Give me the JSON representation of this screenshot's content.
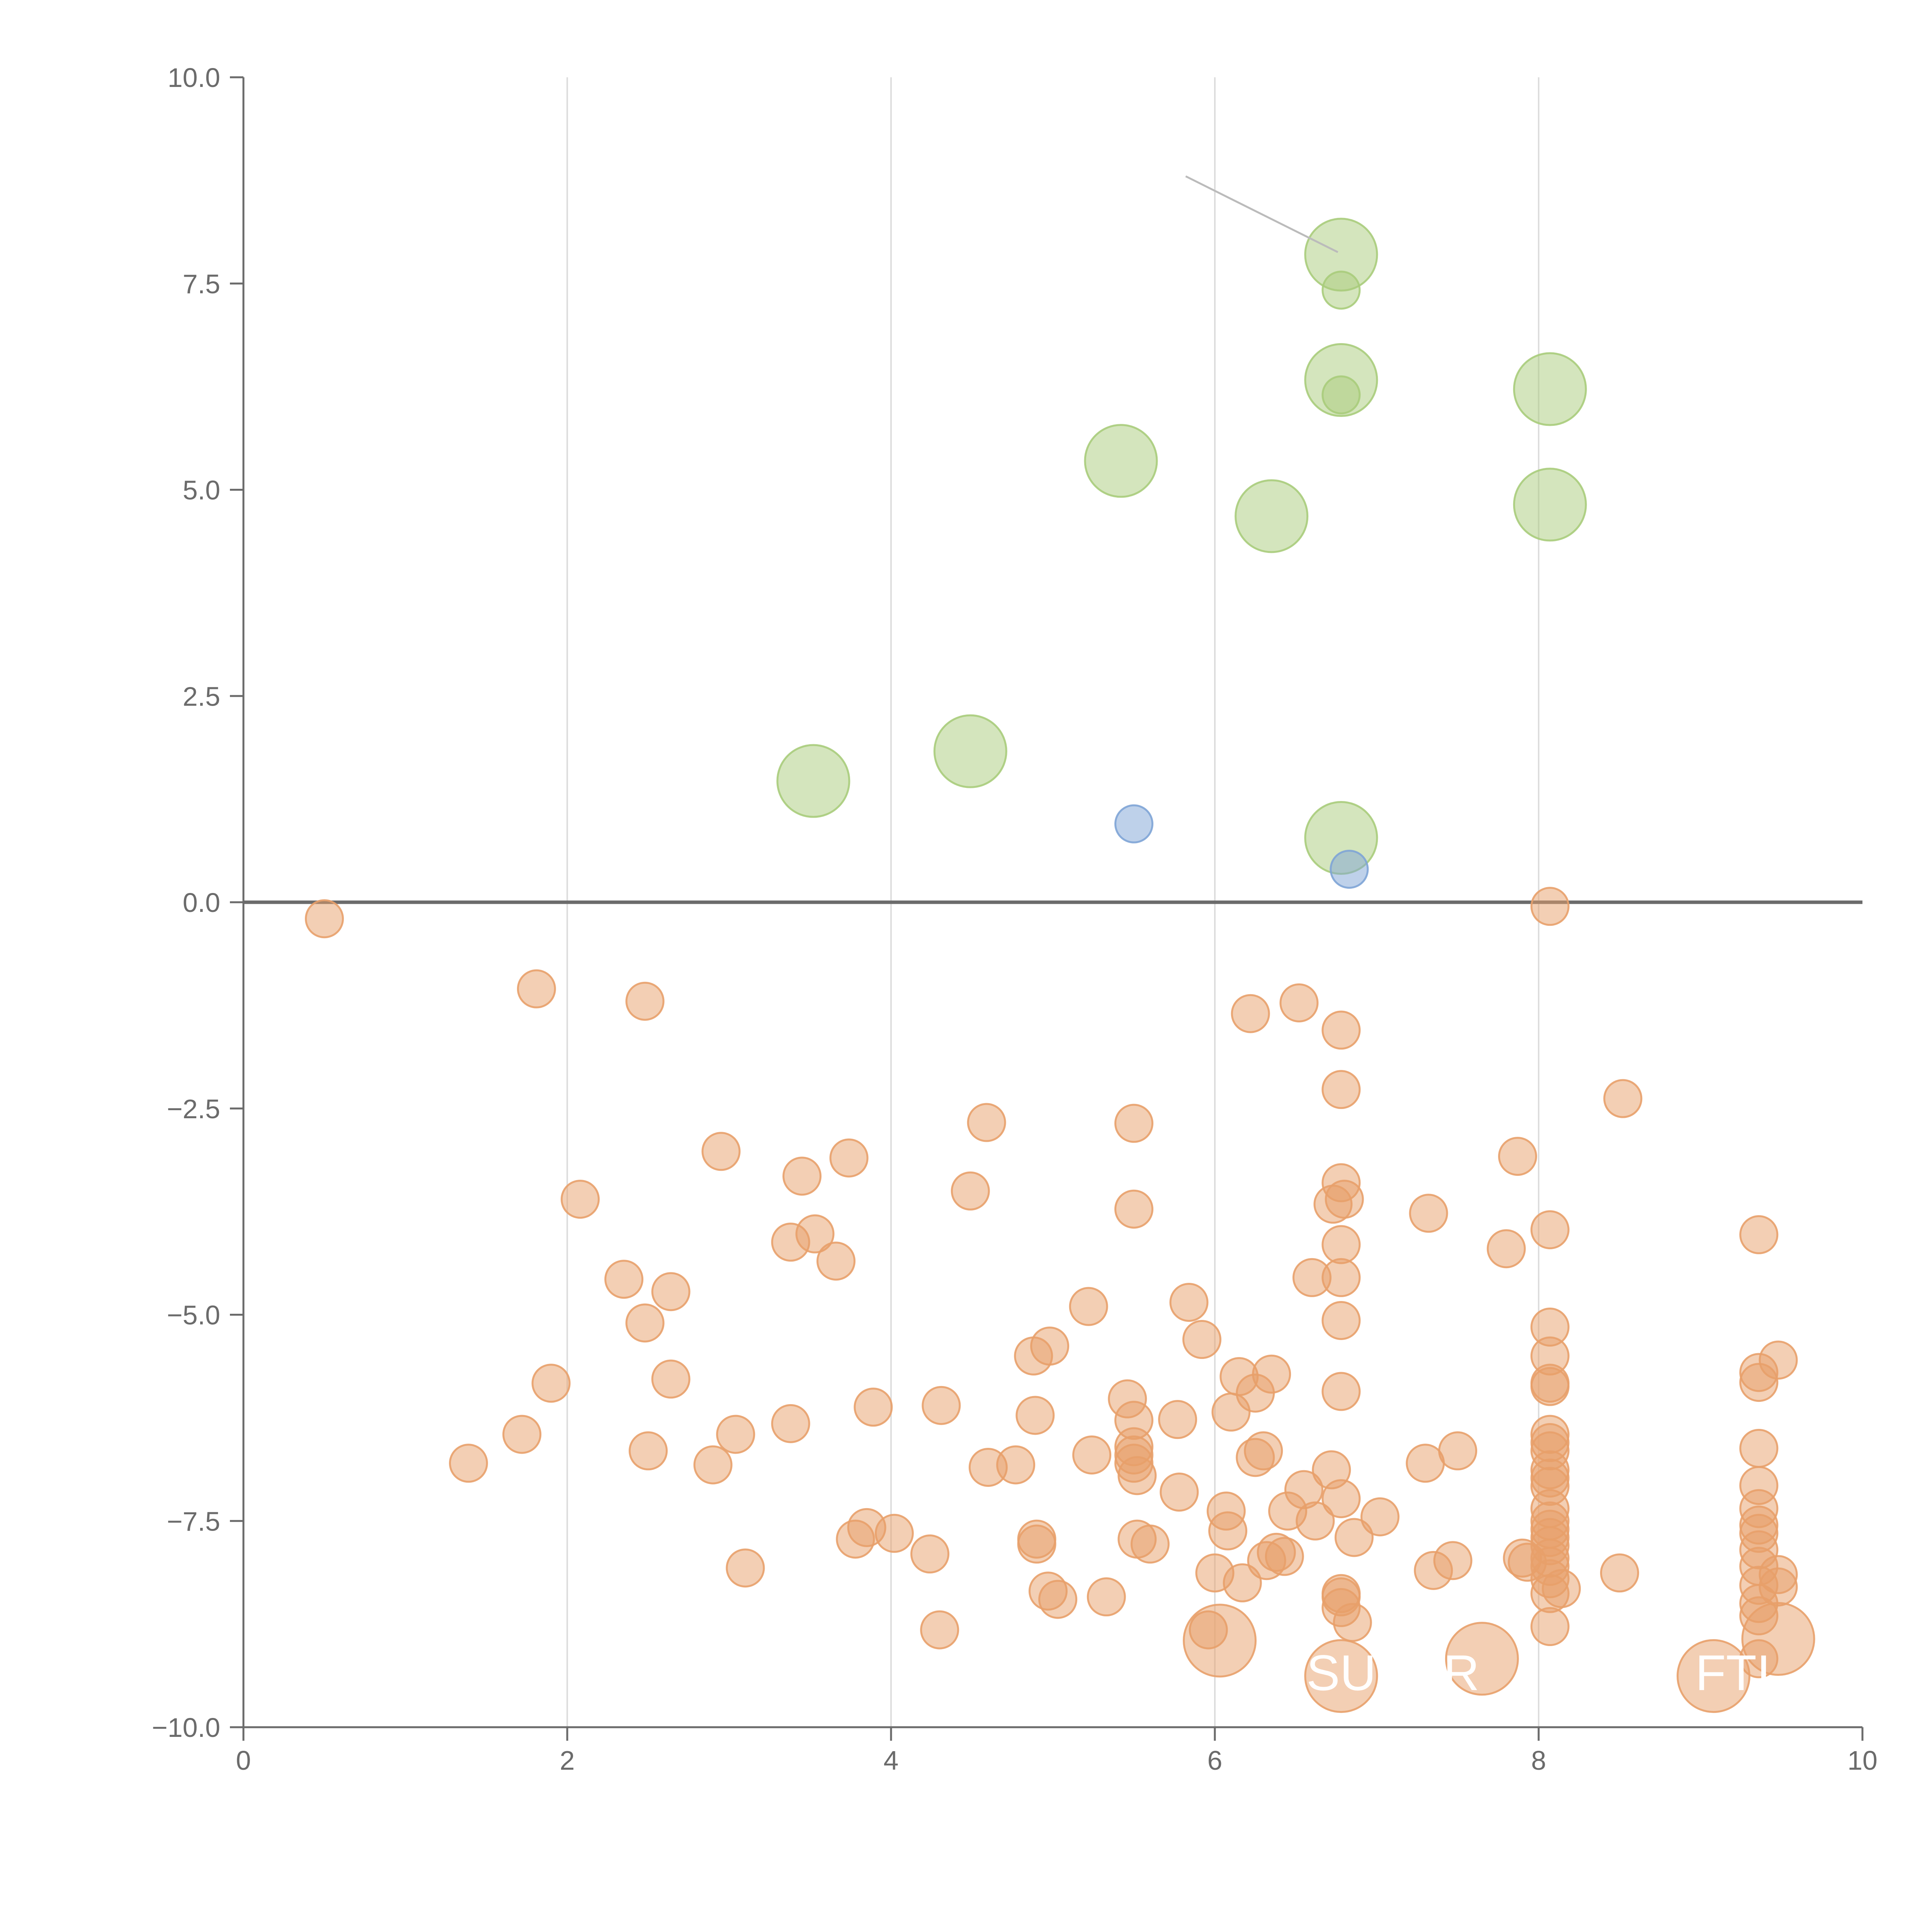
{
  "chart_data": {
    "type": "scatter",
    "title": "",
    "xlabel": "",
    "ylabel": "",
    "xlim": [
      0,
      10
    ],
    "ylim": [
      -10,
      10
    ],
    "x_ticks": [
      0,
      2,
      4,
      6,
      8,
      10
    ],
    "x_tick_labels": [
      "0",
      "2",
      "4",
      "6",
      "8",
      "10"
    ],
    "y_ticks": [
      10,
      7.5,
      5,
      2.5,
      0,
      -2.5,
      -5,
      -7.5,
      -10
    ],
    "y_tick_labels": [
      "10.0",
      "7.5",
      "5.0",
      "2.5",
      "0.0",
      "−2.5",
      "−5.0",
      "−7.5",
      "−10.0"
    ],
    "vertical_grid": true,
    "horizontal_grid": false,
    "zero_line": true,
    "legend": "none",
    "colors": {
      "green": "#a9cc7b",
      "blue": "#7ea4d6",
      "orange": "#e8a06a",
      "axis": "#6b6b6b",
      "grid": "#dddddd",
      "leader_line": "#bbbbbb"
    },
    "series": [
      {
        "color_key": "green",
        "points": [
          [
            6.78,
            7.85,
            3
          ],
          [
            6.78,
            7.42,
            1
          ],
          [
            6.78,
            6.33,
            3
          ],
          [
            6.78,
            6.15,
            1
          ],
          [
            8.07,
            6.22,
            3
          ],
          [
            5.42,
            5.35,
            3
          ],
          [
            6.35,
            4.68,
            3
          ],
          [
            8.07,
            4.82,
            3
          ],
          [
            3.52,
            1.47,
            3
          ],
          [
            4.49,
            1.83,
            3
          ],
          [
            6.78,
            0.78,
            3
          ]
        ]
      },
      {
        "color_key": "blue",
        "points": [
          [
            5.5,
            0.95,
            1
          ],
          [
            6.83,
            0.4,
            1
          ]
        ]
      },
      {
        "color_key": "orange",
        "points": [
          [
            0.5,
            -0.2,
            1
          ],
          [
            1.81,
            -1.05,
            1
          ],
          [
            2.48,
            -1.2,
            1
          ],
          [
            6.22,
            -1.35,
            1
          ],
          [
            6.52,
            -1.22,
            1
          ],
          [
            6.78,
            -1.55,
            1
          ],
          [
            6.78,
            -2.27,
            1
          ],
          [
            8.07,
            -0.05,
            1
          ],
          [
            8.52,
            -2.38,
            1
          ],
          [
            4.59,
            -2.67,
            1
          ],
          [
            5.5,
            -2.68,
            1
          ],
          [
            2.95,
            -3.02,
            1
          ],
          [
            3.74,
            -3.1,
            1
          ],
          [
            3.45,
            -3.32,
            1
          ],
          [
            2.08,
            -3.6,
            1
          ],
          [
            4.49,
            -3.5,
            1
          ],
          [
            5.5,
            -3.72,
            1
          ],
          [
            6.78,
            -3.4,
            1
          ],
          [
            6.73,
            -3.66,
            1
          ],
          [
            6.8,
            -3.6,
            1
          ],
          [
            6.78,
            -4.15,
            1
          ],
          [
            7.87,
            -3.08,
            1
          ],
          [
            7.32,
            -3.77,
            1
          ],
          [
            7.8,
            -4.2,
            1
          ],
          [
            8.07,
            -3.97,
            1
          ],
          [
            9.36,
            -4.03,
            1
          ],
          [
            3.38,
            -4.12,
            1
          ],
          [
            3.53,
            -4.02,
            1
          ],
          [
            3.66,
            -4.35,
            1
          ],
          [
            2.35,
            -4.57,
            1
          ],
          [
            2.64,
            -4.72,
            1
          ],
          [
            6.6,
            -4.55,
            1
          ],
          [
            6.78,
            -4.55,
            1
          ],
          [
            5.84,
            -4.85,
            1
          ],
          [
            5.22,
            -4.9,
            1
          ],
          [
            2.48,
            -5.1,
            1
          ],
          [
            5.92,
            -5.3,
            1
          ],
          [
            6.78,
            -5.07,
            1
          ],
          [
            4.98,
            -5.38,
            1
          ],
          [
            4.88,
            -5.5,
            1
          ],
          [
            8.07,
            -5.15,
            1
          ],
          [
            8.07,
            -5.5,
            1
          ],
          [
            9.48,
            -5.55,
            1
          ],
          [
            9.36,
            -5.7,
            1
          ],
          [
            9.36,
            -5.82,
            1
          ],
          [
            1.9,
            -5.83,
            1
          ],
          [
            2.64,
            -5.78,
            1
          ],
          [
            6.15,
            -5.75,
            1
          ],
          [
            6.35,
            -5.72,
            1
          ],
          [
            6.25,
            -5.95,
            1
          ],
          [
            6.78,
            -5.93,
            1
          ],
          [
            8.07,
            -5.83,
            1
          ],
          [
            8.07,
            -5.87,
            1
          ],
          [
            5.46,
            -6.02,
            1
          ],
          [
            6.1,
            -6.18,
            1
          ],
          [
            3.89,
            -6.12,
            1
          ],
          [
            4.31,
            -6.1,
            1
          ],
          [
            4.89,
            -6.22,
            1
          ],
          [
            5.5,
            -6.28,
            1
          ],
          [
            5.77,
            -6.27,
            1
          ],
          [
            3.38,
            -6.32,
            1
          ],
          [
            1.72,
            -6.45,
            1
          ],
          [
            3.04,
            -6.45,
            1
          ],
          [
            8.07,
            -6.45,
            1
          ],
          [
            8.07,
            -6.55,
            1
          ],
          [
            8.07,
            -6.65,
            1
          ],
          [
            9.36,
            -6.62,
            1
          ],
          [
            5.5,
            -6.6,
            1
          ],
          [
            5.5,
            -6.7,
            1
          ],
          [
            5.5,
            -6.8,
            1
          ],
          [
            6.3,
            -6.65,
            1
          ],
          [
            6.25,
            -6.73,
            1
          ],
          [
            7.5,
            -6.65,
            1
          ],
          [
            5.24,
            -6.7,
            1
          ],
          [
            2.5,
            -6.65,
            1
          ],
          [
            1.39,
            -6.8,
            1
          ],
          [
            2.9,
            -6.82,
            1
          ],
          [
            4.6,
            -6.85,
            1
          ],
          [
            4.77,
            -6.82,
            1
          ],
          [
            5.52,
            -6.95,
            1
          ],
          [
            6.72,
            -6.88,
            1
          ],
          [
            7.3,
            -6.8,
            1
          ],
          [
            8.07,
            -6.88,
            1
          ],
          [
            8.07,
            -6.98,
            1
          ],
          [
            8.07,
            -7.08,
            1
          ],
          [
            9.36,
            -7.07,
            1
          ],
          [
            5.78,
            -7.15,
            1
          ],
          [
            6.55,
            -7.12,
            1
          ],
          [
            6.78,
            -7.23,
            1
          ],
          [
            6.07,
            -7.38,
            1
          ],
          [
            6.45,
            -7.38,
            1
          ],
          [
            6.62,
            -7.5,
            1
          ],
          [
            7.02,
            -7.45,
            1
          ],
          [
            8.07,
            -7.35,
            1
          ],
          [
            8.07,
            -7.5,
            1
          ],
          [
            8.07,
            -7.6,
            1
          ],
          [
            8.07,
            -7.7,
            1
          ],
          [
            9.36,
            -7.35,
            1
          ],
          [
            9.36,
            -7.55,
            1
          ],
          [
            9.36,
            -7.65,
            1
          ],
          [
            3.85,
            -7.58,
            1
          ],
          [
            4.02,
            -7.65,
            1
          ],
          [
            3.78,
            -7.72,
            1
          ],
          [
            4.9,
            -7.72,
            1
          ],
          [
            4.9,
            -7.78,
            1
          ],
          [
            5.52,
            -7.72,
            1
          ],
          [
            5.6,
            -7.78,
            1
          ],
          [
            6.08,
            -7.62,
            1
          ],
          [
            6.86,
            -7.7,
            1
          ],
          [
            4.24,
            -7.9,
            1
          ],
          [
            6.38,
            -7.88,
            1
          ],
          [
            6.43,
            -7.93,
            1
          ],
          [
            6.32,
            -7.98,
            1
          ],
          [
            7.47,
            -7.98,
            1
          ],
          [
            7.35,
            -8.1,
            1
          ],
          [
            7.9,
            -7.95,
            1
          ],
          [
            7.93,
            -8.0,
            1
          ],
          [
            8.07,
            -7.8,
            1
          ],
          [
            8.07,
            -7.95,
            1
          ],
          [
            8.07,
            -8.05,
            1
          ],
          [
            9.36,
            -7.85,
            1
          ],
          [
            9.36,
            -8.05,
            1
          ],
          [
            9.48,
            -8.15,
            1
          ],
          [
            3.1,
            -8.07,
            1
          ],
          [
            6.0,
            -8.13,
            1
          ],
          [
            6.17,
            -8.25,
            1
          ],
          [
            8.07,
            -8.2,
            1
          ],
          [
            8.14,
            -8.32,
            1
          ],
          [
            8.07,
            -8.38,
            1
          ],
          [
            8.5,
            -8.13,
            1
          ],
          [
            9.36,
            -8.28,
            1
          ],
          [
            9.48,
            -8.3,
            1
          ],
          [
            4.97,
            -8.35,
            1
          ],
          [
            5.03,
            -8.45,
            1
          ],
          [
            5.33,
            -8.42,
            1
          ],
          [
            6.78,
            -8.38,
            1
          ],
          [
            6.78,
            -8.42,
            1
          ],
          [
            6.78,
            -8.55,
            1
          ],
          [
            9.36,
            -8.5,
            1
          ],
          [
            9.36,
            -8.65,
            1
          ],
          [
            4.3,
            -8.82,
            1
          ],
          [
            5.96,
            -8.82,
            1
          ],
          [
            6.85,
            -8.73,
            1
          ],
          [
            8.07,
            -8.78,
            1
          ],
          [
            6.03,
            -8.95,
            3
          ],
          [
            9.48,
            -8.93,
            3
          ],
          [
            7.65,
            -9.17,
            3
          ],
          [
            9.36,
            -9.17,
            1
          ],
          [
            6.78,
            -9.38,
            3
          ],
          [
            9.08,
            -9.38,
            3
          ]
        ]
      }
    ],
    "labels": [
      {
        "text": "SUPER",
        "x": 7.1,
        "y": -9.55
      },
      {
        "text": "FTI",
        "x": 9.2,
        "y": -9.55
      }
    ]
  }
}
